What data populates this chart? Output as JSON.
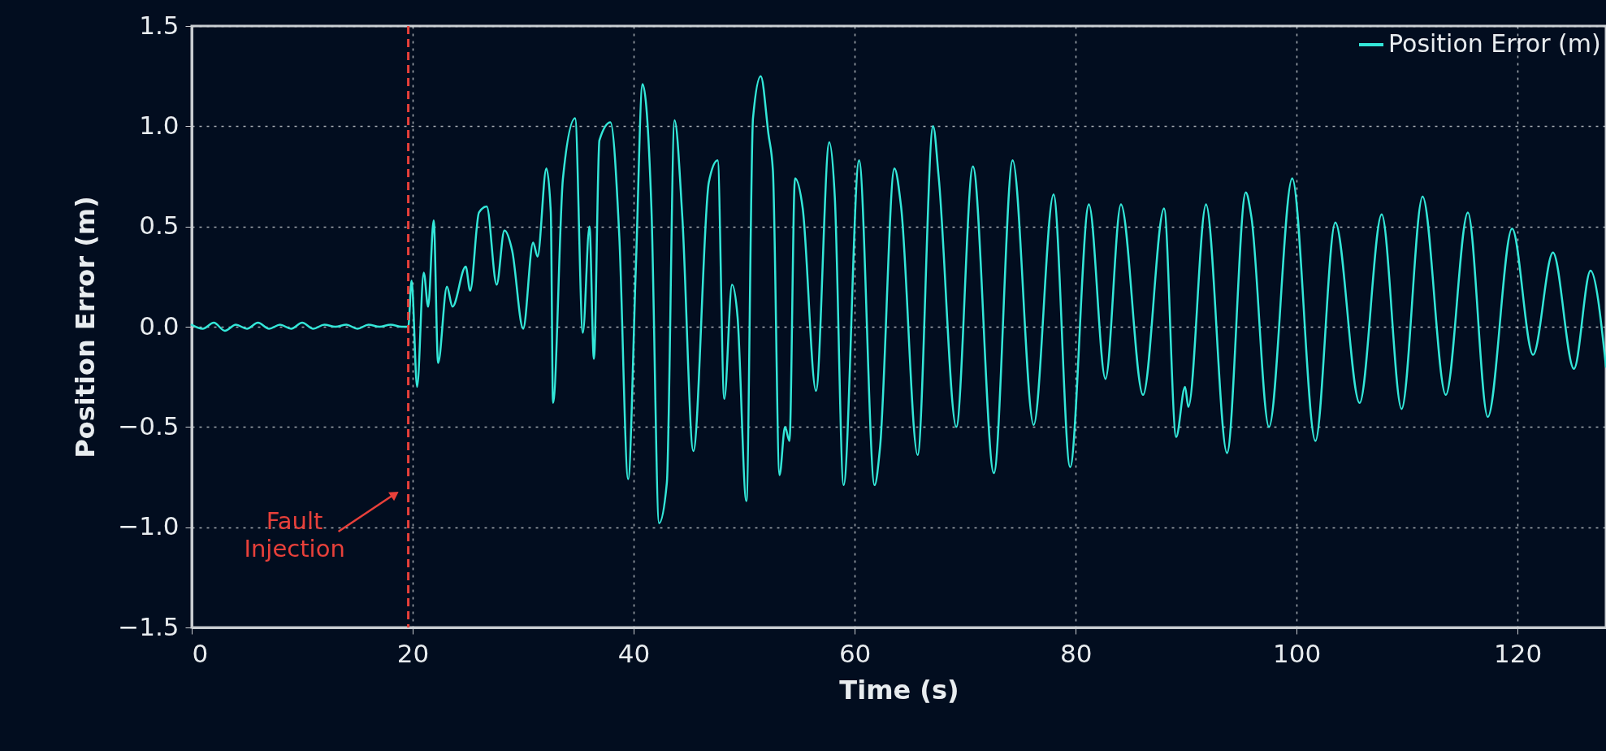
{
  "chart_data": {
    "type": "line",
    "xlabel": "Time (s)",
    "ylabel": "Position Error (m)",
    "xlim": [
      0,
      128
    ],
    "xticks": [
      0,
      20,
      40,
      60,
      80,
      100,
      120
    ],
    "ylim": [
      -1.5,
      1.5
    ],
    "yticks": [
      {
        "value": -1.5,
        "label": "−1.5"
      },
      {
        "value": -1,
        "label": "−1.0"
      },
      {
        "value": -0.5,
        "label": "−0.5"
      },
      {
        "value": 0,
        "label": "0.0"
      },
      {
        "value": 0.5,
        "label": "0.5"
      },
      {
        "value": 1,
        "label": "1.0"
      },
      {
        "value": 1.5,
        "label": "1.5"
      }
    ],
    "grid": true,
    "legend": "top right",
    "line_style": "solid",
    "ref_lines": [
      {
        "axis": "x",
        "value": 19.6,
        "label": "Fault Injection",
        "color": "#e8403a",
        "line_style": "dashed"
      }
    ],
    "x": [
      0,
      1,
      2,
      3,
      4,
      5,
      6,
      7,
      8,
      9,
      10,
      11,
      12,
      13,
      14,
      15,
      16,
      17,
      18,
      19,
      19.6,
      19.9,
      20.4,
      21,
      21.4,
      21.9,
      22.3,
      23.1,
      23.6,
      24.8,
      25.2,
      26,
      26.7,
      27.6,
      28.3,
      29,
      30,
      30.9,
      31.3,
      32.1,
      32.5,
      32.7,
      33.6,
      34.7,
      35.4,
      36,
      36.4,
      36.9,
      37.9,
      38.7,
      39.5,
      40.2,
      40.8,
      41.6,
      42.3,
      43,
      43.7,
      44.4,
      45.4,
      46.8,
      47.6,
      48.2,
      48.9,
      49.4,
      50.2,
      50.8,
      51.5,
      52.2,
      52.6,
      53.2,
      53.7,
      54.1,
      54.6,
      55.3,
      56.5,
      57.7,
      58.2,
      59,
      60.4,
      61.8,
      62.3,
      63.6,
      64.2,
      65.7,
      67.1,
      67.6,
      69.2,
      70.7,
      72.6,
      74.3,
      76.2,
      78,
      79.5,
      81.2,
      82.7,
      84.1,
      86.1,
      88,
      89.1,
      89.9,
      90.2,
      91.8,
      93.7,
      95.4,
      95.9,
      97.5,
      99.6,
      101.7,
      103.5,
      105.7,
      107.7,
      109.5,
      111.4,
      113.5,
      115.5,
      117.3,
      119.5,
      121.4,
      123.2,
      125.1,
      126.6,
      128
    ],
    "series": [
      {
        "name": "Position Error (m)",
        "color": "#33e6d8",
        "values": [
          0.01,
          -0.01,
          0.02,
          -0.02,
          0.01,
          -0.01,
          0.02,
          -0.01,
          0.01,
          -0.01,
          0.02,
          -0.01,
          0.01,
          0,
          0.01,
          -0.01,
          0.01,
          0,
          0.01,
          0,
          0,
          0.23,
          -0.3,
          0.27,
          0.1,
          0.53,
          -0.18,
          0.2,
          0.1,
          0.3,
          0.18,
          0.57,
          0.6,
          0.21,
          0.48,
          0.38,
          -0.01,
          0.42,
          0.35,
          0.79,
          0.57,
          -0.38,
          0.74,
          1.04,
          -0.03,
          0.5,
          -0.16,
          0.93,
          1.02,
          0.45,
          -0.76,
          0.3,
          1.21,
          0.6,
          -0.98,
          -0.78,
          1.03,
          0.55,
          -0.62,
          0.72,
          0.83,
          -0.36,
          0.21,
          0.05,
          -0.87,
          1.04,
          1.25,
          0.96,
          0.78,
          -0.74,
          -0.5,
          -0.57,
          0.74,
          0.59,
          -0.32,
          0.92,
          0.65,
          -0.79,
          0.83,
          -0.79,
          -0.6,
          0.79,
          0.6,
          -0.64,
          1.0,
          0.75,
          -0.5,
          0.8,
          -0.73,
          0.83,
          -0.49,
          0.66,
          -0.7,
          0.61,
          -0.26,
          0.61,
          -0.34,
          0.59,
          -0.55,
          -0.3,
          -0.4,
          0.61,
          -0.63,
          0.67,
          0.55,
          -0.5,
          0.74,
          -0.57,
          0.52,
          -0.38,
          0.56,
          -0.41,
          0.65,
          -0.34,
          0.57,
          -0.45,
          0.49,
          -0.14,
          0.37,
          -0.21,
          0.28,
          -0.2
        ]
      }
    ]
  }
}
